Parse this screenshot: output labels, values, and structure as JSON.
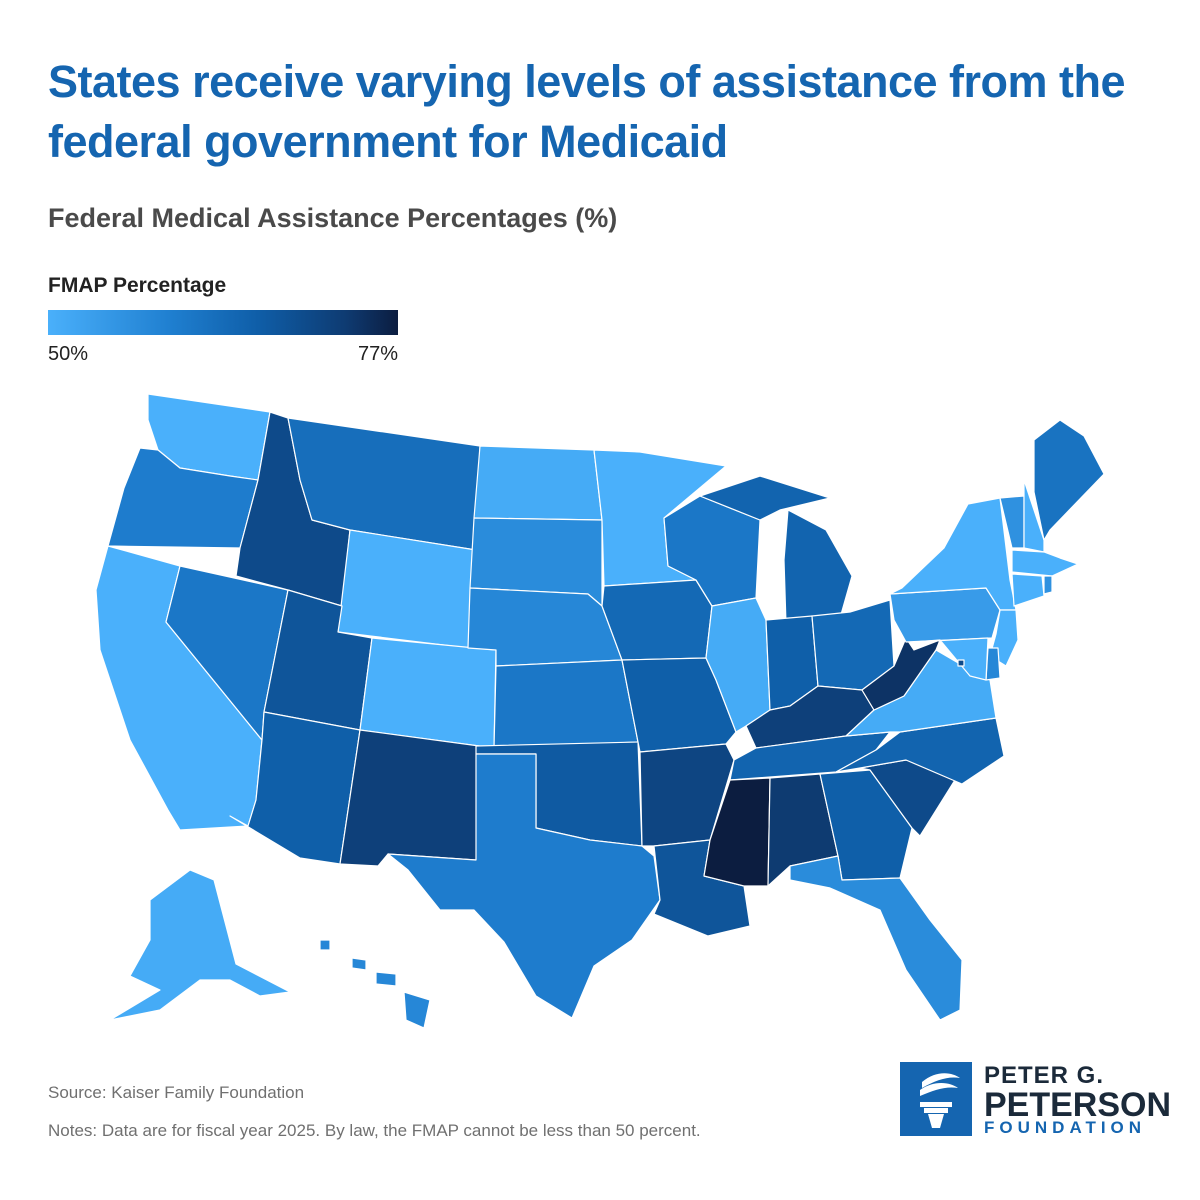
{
  "header": {
    "title": "States receive varying levels of assistance from the federal government for Medicaid",
    "subtitle": "Federal Medical Assistance Percentages (%)"
  },
  "legend": {
    "title": "FMAP Percentage",
    "min_label": "50%",
    "max_label": "77%",
    "min_value": 50,
    "max_value": 77,
    "color_low": "#4ab0fb",
    "color_high": "#0c1d40"
  },
  "chart_data": {
    "type": "choropleth",
    "title": "States receive varying levels of assistance from the federal government for Medicaid",
    "subtitle": "Federal Medical Assistance Percentages (%)",
    "legend_title": "FMAP Percentage",
    "scale": [
      50,
      77
    ],
    "values": {
      "WA": 50,
      "OR": 60,
      "CA": 50,
      "NV": 61,
      "ID": 70,
      "MT": 63,
      "WY": 50,
      "UT": 68,
      "AZ": 66,
      "CO": 50,
      "NM": 72,
      "ND": 51,
      "SD": 57,
      "NE": 58,
      "KS": 61,
      "OK": 67,
      "TX": 60,
      "MN": 50,
      "IA": 64,
      "MO": 66,
      "AR": 71,
      "LA": 68,
      "WI": 61,
      "IL": 51,
      "MI": 65,
      "IN": 66,
      "OH": 64,
      "KY": 72,
      "TN": 65,
      "MS": 77,
      "AL": 73,
      "GA": 66,
      "FL": 57,
      "SC": 70,
      "NC": 65,
      "VA": 51,
      "WV": 74,
      "PA": 54,
      "NY": 50,
      "VT": 56,
      "NH": 50,
      "ME": 62,
      "MA": 50,
      "CT": 50,
      "RI": 56,
      "NJ": 50,
      "DE": 58,
      "MD": 50,
      "DC": 70,
      "AK": 51,
      "HI": 58
    }
  },
  "footer": {
    "source": "Source: Kaiser Family Foundation",
    "notes": "Notes: Data are for fiscal year 2025. By law, the FMAP cannot be less than 50 percent."
  },
  "logo": {
    "line1": "PETER G.",
    "line2": "PETERSON",
    "line3": "FOUNDATION"
  }
}
